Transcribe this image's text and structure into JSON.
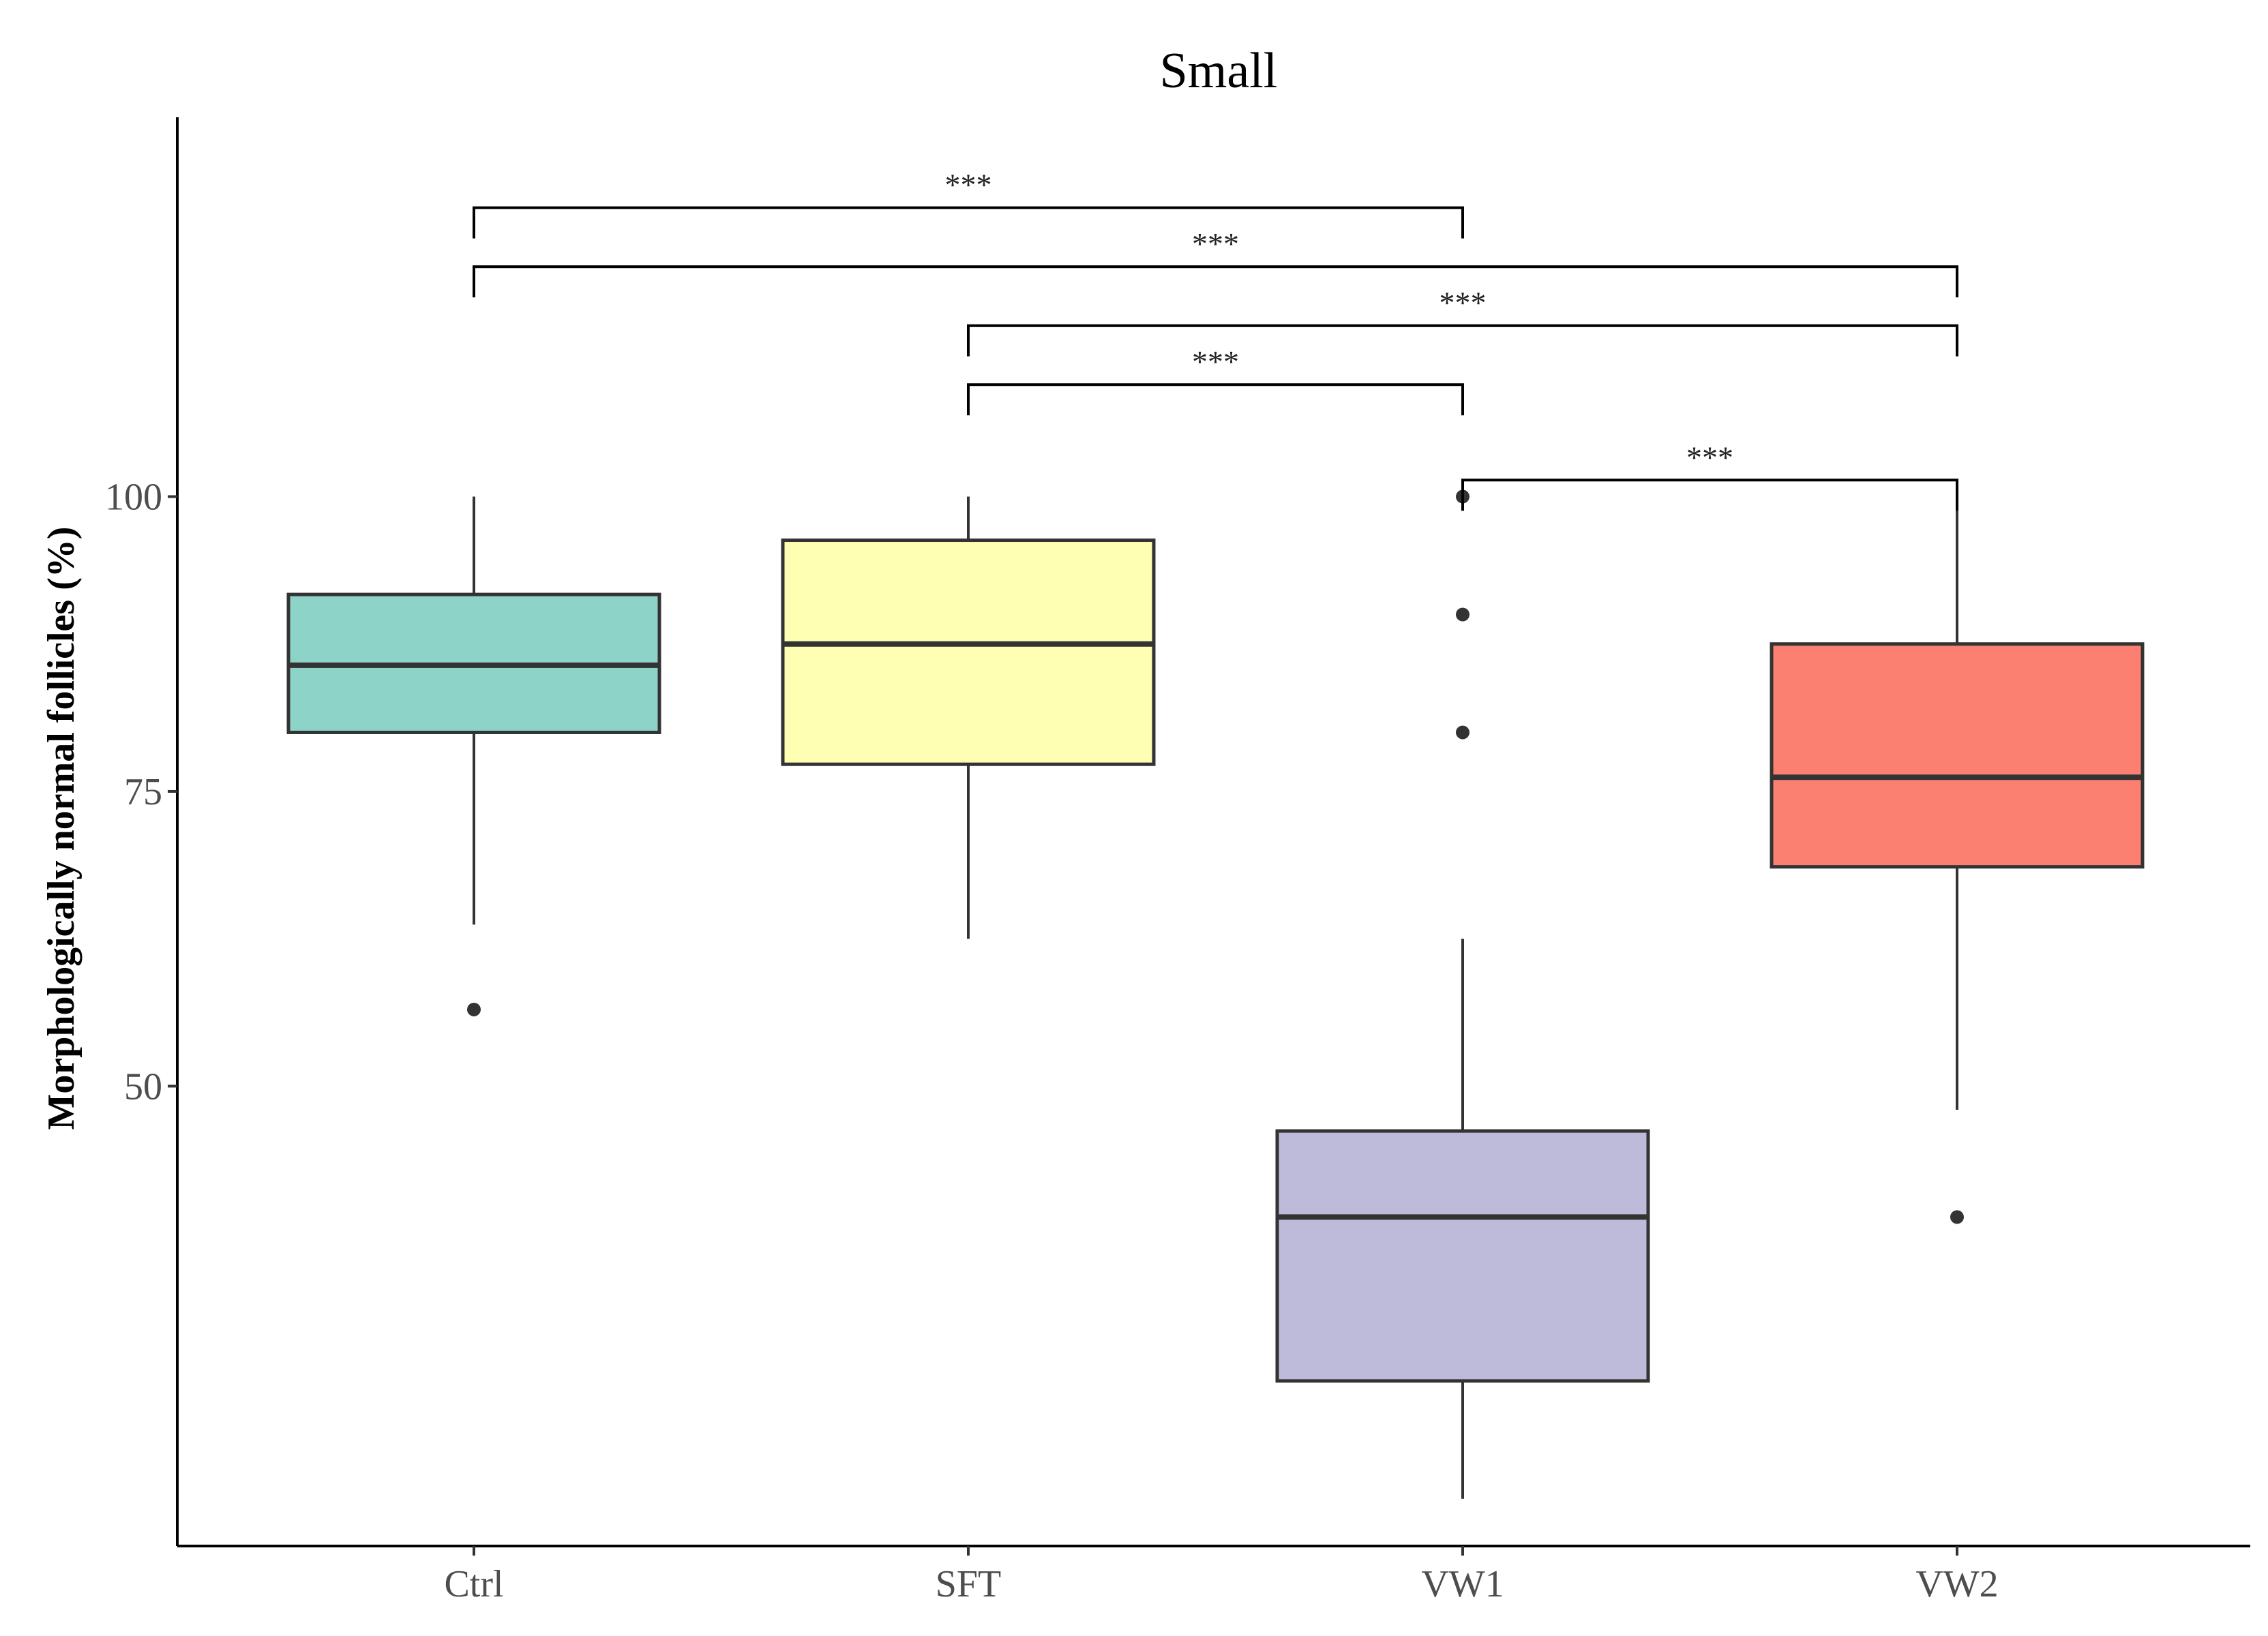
{
  "chart_data": {
    "type": "box",
    "title": "Small",
    "ylabel": "Morphologically normal follicles (%)",
    "xlabel": "",
    "ylim": [
      11,
      132
    ],
    "yticks": [
      50,
      75,
      100
    ],
    "categories": [
      "Ctrl",
      "SFT",
      "VW1",
      "VW2"
    ],
    "grid": false,
    "legend": "none",
    "boxes": [
      {
        "category": "Ctrl",
        "color": "#8DD3C7",
        "whisker_low": 63.7,
        "q1": 80.0,
        "median": 85.7,
        "q3": 91.7,
        "whisker_high": 100.0,
        "outliers": [
          56.5
        ]
      },
      {
        "category": "SFT",
        "color": "#FFFFB3",
        "whisker_low": 62.5,
        "q1": 77.3,
        "median": 87.5,
        "q3": 96.3,
        "whisker_high": 100.0,
        "outliers": []
      },
      {
        "category": "VW1",
        "color": "#BEBADA",
        "whisker_low": 15.0,
        "q1": 25.0,
        "median": 38.9,
        "q3": 46.2,
        "whisker_high": 62.5,
        "outliers": [
          100.0,
          90.0,
          80.0
        ]
      },
      {
        "category": "VW2",
        "color": "#FB8072",
        "whisker_low": 48.0,
        "q1": 68.6,
        "median": 76.2,
        "q3": 87.5,
        "whisker_high": 100.0,
        "outliers": [
          38.9
        ]
      }
    ],
    "comparisons": [
      {
        "from": "Ctrl",
        "to": "VW1",
        "label": "***",
        "y": 124.5
      },
      {
        "from": "Ctrl",
        "to": "VW2",
        "label": "***",
        "y": 119.5
      },
      {
        "from": "SFT",
        "to": "VW2",
        "label": "***",
        "y": 114.5
      },
      {
        "from": "SFT",
        "to": "VW1",
        "label": "***",
        "y": 109.5
      },
      {
        "from": "VW1",
        "to": "VW2",
        "label": "***",
        "y": 101.4
      }
    ]
  }
}
